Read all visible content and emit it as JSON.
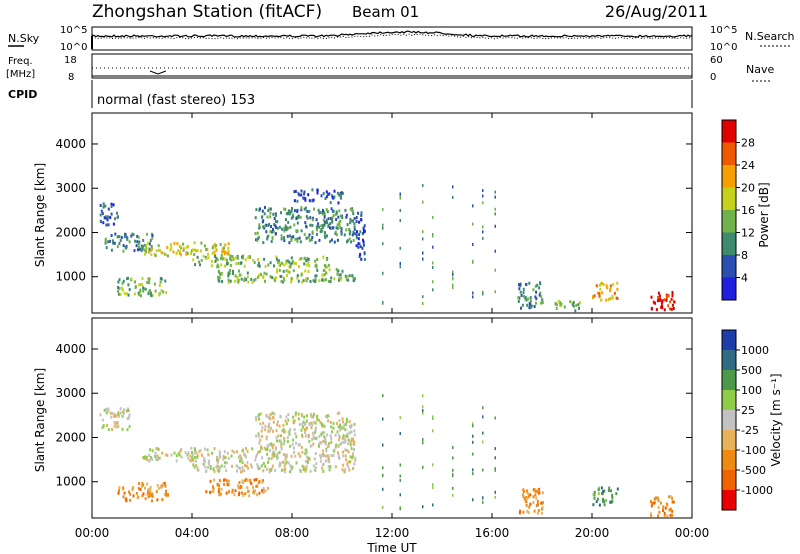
{
  "header": {
    "station": "Zhongshan Station (fitACF)",
    "beam": "Beam 01",
    "date": "26/Aug/2011"
  },
  "noise_panel": {
    "left_label": "N.Sky",
    "right_label": "N.Search",
    "left_ticks": [
      "10^5",
      "10^0"
    ],
    "right_ticks": [
      "10^5",
      "10^0"
    ]
  },
  "freq_panel": {
    "left_label_line1": "Freq.",
    "left_label_line2": "[MHz]",
    "right_label": "Nave",
    "left_ticks": [
      "18",
      "8"
    ],
    "right_ticks": [
      "60",
      "0"
    ]
  },
  "cpid": {
    "label": "CPID",
    "text": "normal (fast stereo) 153"
  },
  "colors": {
    "power": [
      "#1f1fe0",
      "#2a4fb0",
      "#3e8a6e",
      "#6fb24a",
      "#c4d21a",
      "#f5a000",
      "#ef5a00",
      "#e00000"
    ],
    "velocity": [
      "#1d3da8",
      "#2f6b84",
      "#4c9a48",
      "#8fcc4a",
      "#c2c2c2",
      "#e8b25a",
      "#ef8a10",
      "#f06400",
      "#e80000"
    ]
  },
  "chart_data": [
    {
      "type": "heatmap",
      "name": "Power",
      "ylabel": "Slant Range [km]",
      "yticks": [
        "1000",
        "2000",
        "3000",
        "4000"
      ],
      "xticks": [
        "00:00",
        "04:00",
        "08:00",
        "12:00",
        "16:00",
        "20:00",
        "00:00"
      ],
      "xlim_hours": [
        0,
        24
      ],
      "ylim_km": [
        180,
        4700
      ],
      "colorbar": {
        "label": "Power [dB]",
        "ticks": [
          "4",
          "8",
          "12",
          "16",
          "20",
          "24",
          "28"
        ],
        "range": [
          0,
          30
        ]
      },
      "patches": [
        {
          "t": [
            0.3,
            1.0
          ],
          "r": [
            2200,
            2700
          ],
          "level": 1
        },
        {
          "t": [
            0.5,
            2.5
          ],
          "r": [
            1600,
            2000
          ],
          "level": 2
        },
        {
          "t": [
            1.0,
            3.0
          ],
          "r": [
            600,
            1000
          ],
          "level": 3
        },
        {
          "t": [
            2.0,
            5.5
          ],
          "r": [
            1500,
            1800
          ],
          "level": 4
        },
        {
          "t": [
            4.0,
            9.5
          ],
          "r": [
            1250,
            1500
          ],
          "level": 3
        },
        {
          "t": [
            5.0,
            10.5
          ],
          "r": [
            900,
            1200
          ],
          "level": 3
        },
        {
          "t": [
            6.5,
            10.5
          ],
          "r": [
            1800,
            2600
          ],
          "level": 2
        },
        {
          "t": [
            8.0,
            10.0
          ],
          "r": [
            2700,
            3000
          ],
          "level": 1
        },
        {
          "t": [
            10.5,
            10.9
          ],
          "r": [
            1400,
            2500
          ],
          "level": 1
        },
        {
          "t": [
            17.0,
            18.0
          ],
          "r": [
            300,
            900
          ],
          "level": 2
        },
        {
          "t": [
            18.5,
            19.5
          ],
          "r": [
            250,
            500
          ],
          "level": 3
        },
        {
          "t": [
            20.0,
            21.0
          ],
          "r": [
            500,
            900
          ],
          "level": 5
        },
        {
          "t": [
            22.3,
            23.3
          ],
          "r": [
            250,
            700
          ],
          "level": 7
        }
      ]
    },
    {
      "type": "heatmap",
      "name": "Velocity",
      "ylabel": "Slant Range [km]",
      "yticks": [
        "1000",
        "2000",
        "3000",
        "4000"
      ],
      "xticks": [
        "00:00",
        "04:00",
        "08:00",
        "12:00",
        "16:00",
        "20:00",
        "00:00"
      ],
      "xlabel": "Time UT",
      "xlim_hours": [
        0,
        24
      ],
      "ylim_km": [
        180,
        4700
      ],
      "colorbar": {
        "label": "Velocity [m s⁻¹]",
        "ticks": [
          "1000",
          "500",
          "100",
          "25",
          "-25",
          "-100",
          "-500",
          "-1000"
        ],
        "range": [
          -1000,
          1000
        ]
      },
      "patches": [
        {
          "t": [
            0.3,
            1.5
          ],
          "r": [
            2200,
            2700
          ],
          "level": 4
        },
        {
          "t": [
            1.0,
            3.0
          ],
          "r": [
            600,
            1000
          ],
          "level": 6
        },
        {
          "t": [
            2.0,
            10.5
          ],
          "r": [
            1500,
            1800
          ],
          "level": 4
        },
        {
          "t": [
            4.0,
            10.5
          ],
          "r": [
            1250,
            1500
          ],
          "level": 4
        },
        {
          "t": [
            6.5,
            10.5
          ],
          "r": [
            1800,
            2600
          ],
          "level": 4
        },
        {
          "t": [
            4.5,
            7.0
          ],
          "r": [
            700,
            1100
          ],
          "level": 6
        },
        {
          "t": [
            17.0,
            18.0
          ],
          "r": [
            300,
            900
          ],
          "level": 6
        },
        {
          "t": [
            20.0,
            21.0
          ],
          "r": [
            500,
            900
          ],
          "level": 2
        },
        {
          "t": [
            22.3,
            23.3
          ],
          "r": [
            250,
            700
          ],
          "level": 6
        }
      ]
    }
  ]
}
